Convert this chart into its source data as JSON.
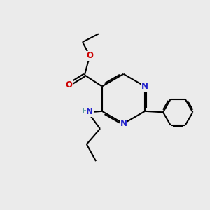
{
  "background_color": "#ebebeb",
  "bond_color": "#000000",
  "nitrogen_color": "#2222cc",
  "oxygen_color": "#cc0000",
  "nh_h_color": "#5f9ea0",
  "line_width": 1.5,
  "dbo": 0.055,
  "figsize": [
    3.0,
    3.0
  ],
  "dpi": 100,
  "xlim": [
    0,
    10
  ],
  "ylim": [
    0,
    10
  ]
}
